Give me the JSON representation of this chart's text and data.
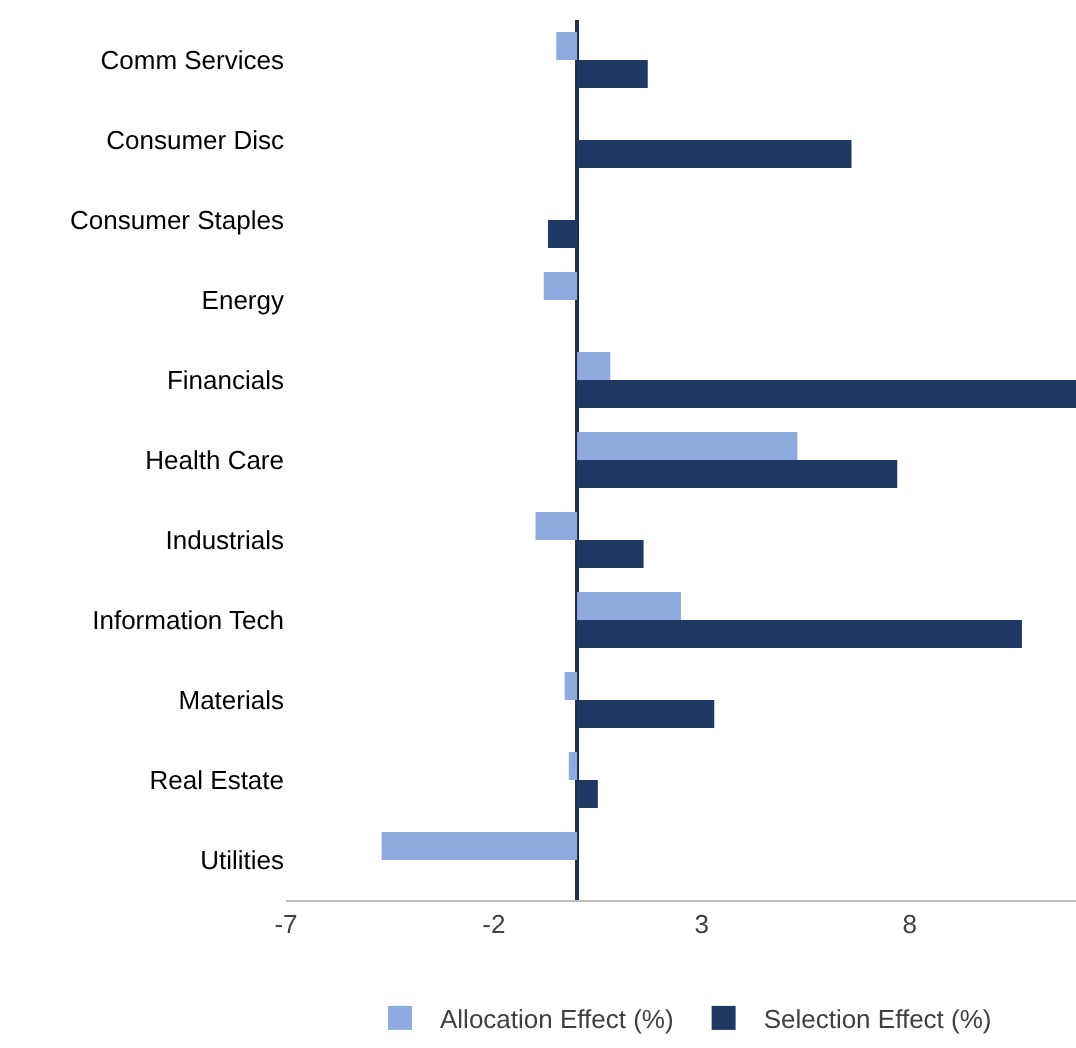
{
  "chart_data": {
    "type": "bar",
    "orientation": "horizontal",
    "categories": [
      "Comm Services",
      "Consumer Disc",
      "Consumer Staples",
      "Energy",
      "Financials",
      "Health Care",
      "Industrials",
      "Information Tech",
      "Materials",
      "Real Estate",
      "Utilities"
    ],
    "series": [
      {
        "name": "Allocation Effect (%)",
        "color": "#8faadc",
        "values": [
          -0.5,
          0,
          0,
          -0.8,
          0.8,
          5.3,
          -1,
          2.5,
          -0.3,
          -0.2,
          -4.7
        ]
      },
      {
        "name": "Selection Effect (%)",
        "color": "#203864",
        "values": [
          1.7,
          6.6,
          -0.7,
          0,
          12,
          7.7,
          1.6,
          10.7,
          3.3,
          0.5,
          0
        ]
      }
    ],
    "xlim": [
      -7,
      12
    ],
    "xticks": [
      -7,
      -2,
      3,
      8
    ],
    "grid": false,
    "legend": "bottom"
  }
}
